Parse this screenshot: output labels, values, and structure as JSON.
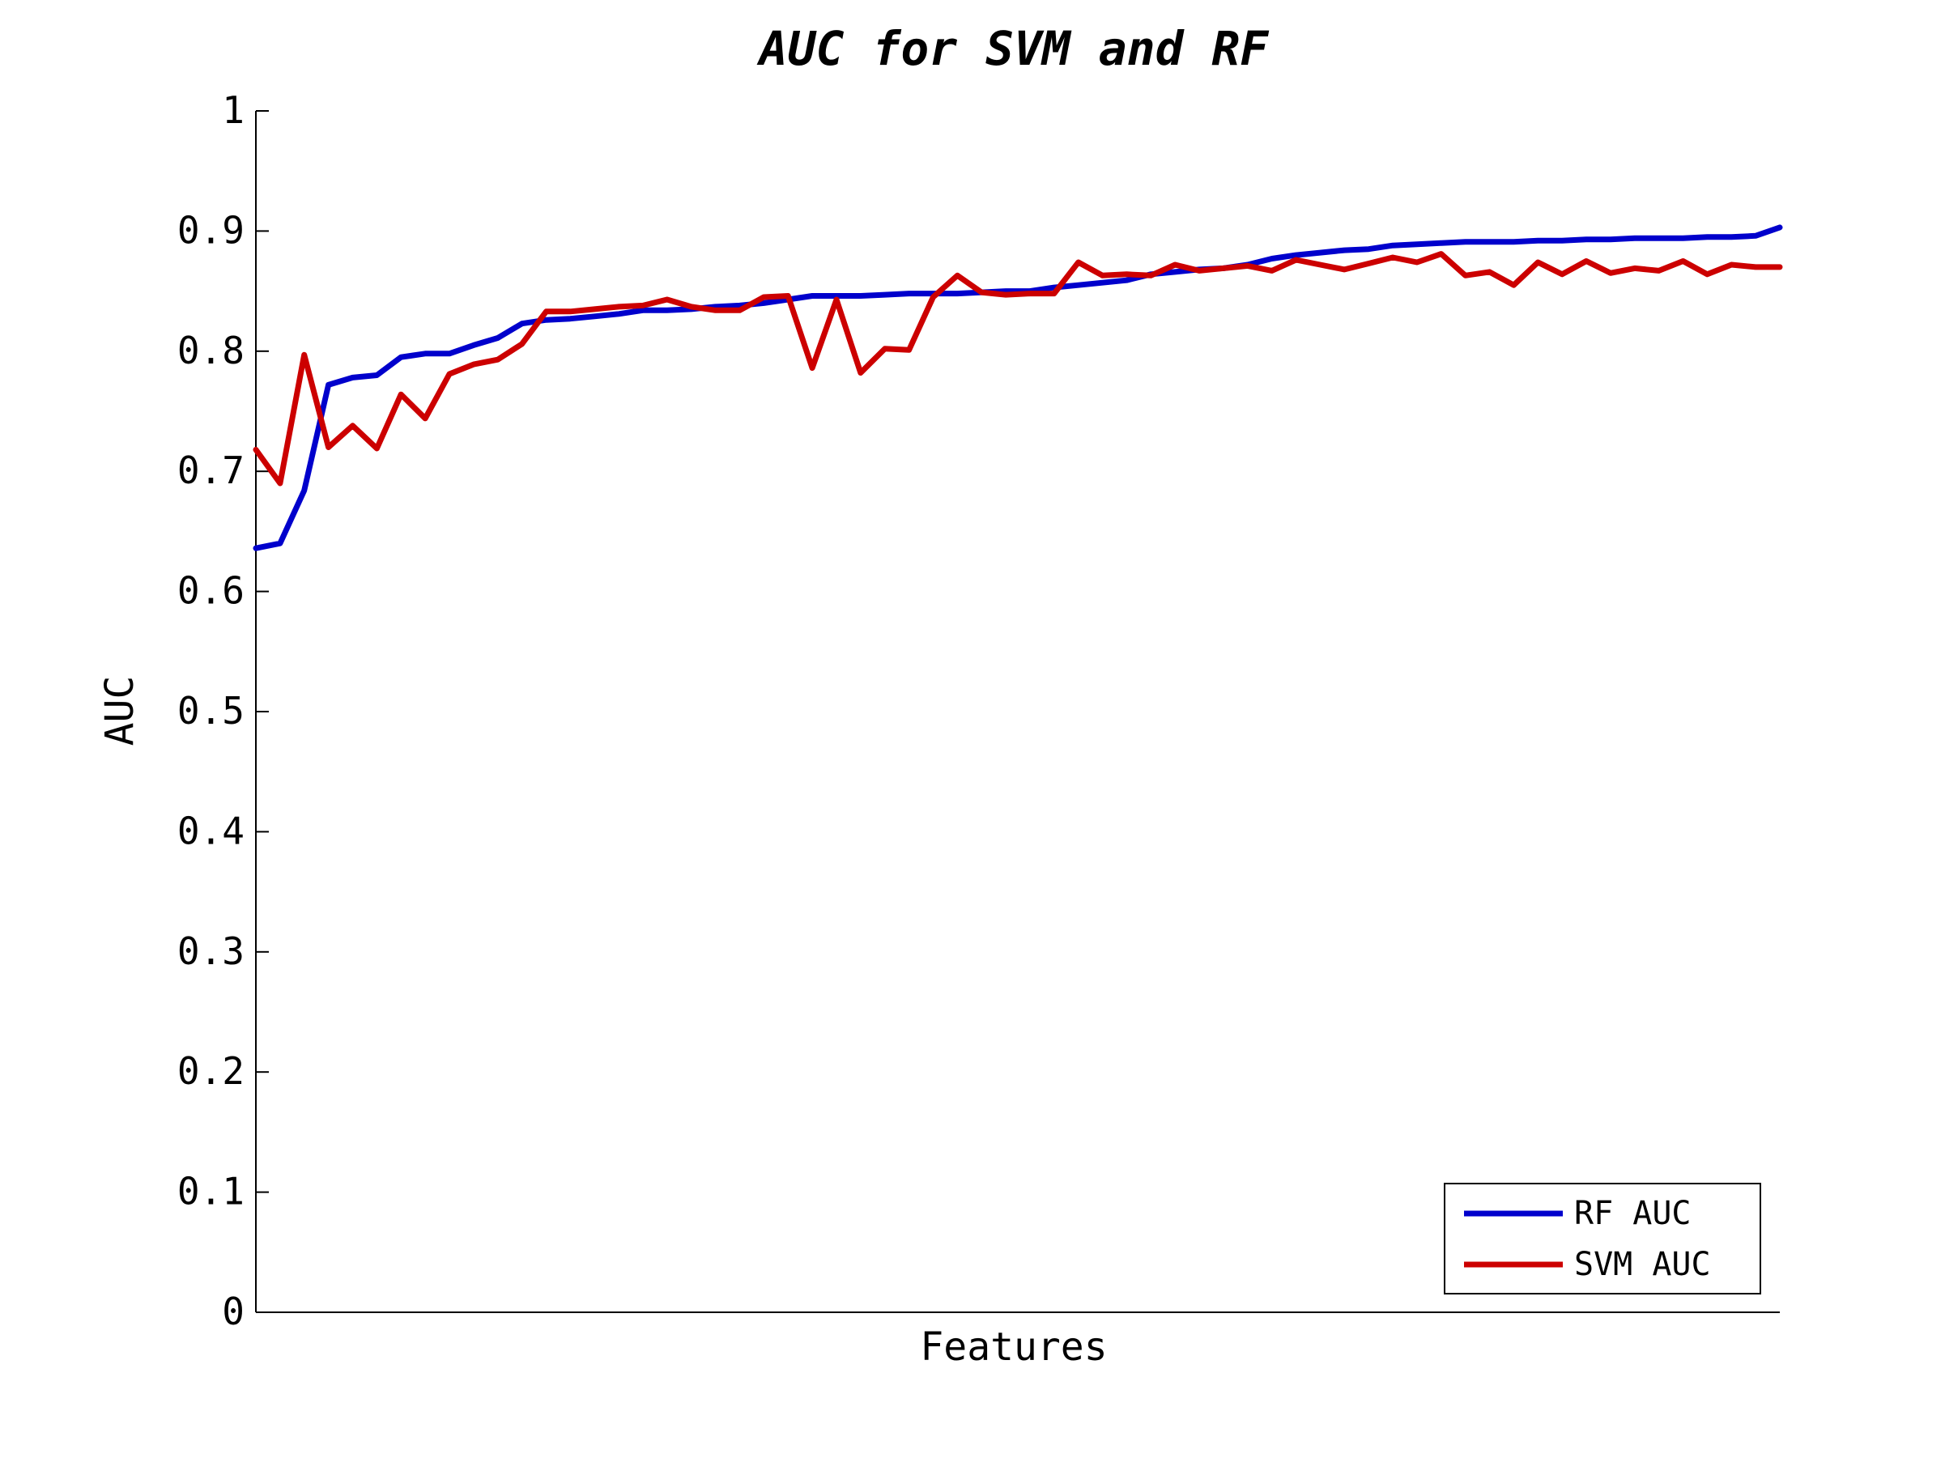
{
  "chart_data": {
    "type": "line",
    "title": "AUC for SVM and RF",
    "xlabel": "Features",
    "ylabel": "AUC",
    "ylim": [
      0,
      1
    ],
    "yticks": [
      0,
      0.1,
      0.2,
      0.3,
      0.4,
      0.5,
      0.6,
      0.7,
      0.8,
      0.9,
      1
    ],
    "ytick_labels": [
      "0",
      "0.1",
      "0.2",
      "0.3",
      "0.4",
      "0.5",
      "0.6",
      "0.7",
      "0.8",
      "0.9",
      "1"
    ],
    "xlim": [
      1,
      64
    ],
    "grid": false,
    "legend_position": "bottom-right",
    "x": [
      1,
      2,
      3,
      4,
      5,
      6,
      7,
      8,
      9,
      10,
      11,
      12,
      13,
      14,
      15,
      16,
      17,
      18,
      19,
      20,
      21,
      22,
      23,
      24,
      25,
      26,
      27,
      28,
      29,
      30,
      31,
      32,
      33,
      34,
      35,
      36,
      37,
      38,
      39,
      40,
      41,
      42,
      43,
      44,
      45,
      46,
      47,
      48,
      49,
      50,
      51,
      52,
      53,
      54,
      55,
      56,
      57,
      58,
      59,
      60,
      61,
      62,
      63,
      64
    ],
    "series": [
      {
        "name": "RF AUC",
        "color": "#0000cc",
        "values": [
          0.636,
          0.64,
          0.684,
          0.772,
          0.778,
          0.78,
          0.795,
          0.798,
          0.798,
          0.805,
          0.811,
          0.823,
          0.826,
          0.827,
          0.829,
          0.831,
          0.834,
          0.834,
          0.835,
          0.837,
          0.838,
          0.84,
          0.843,
          0.846,
          0.846,
          0.846,
          0.847,
          0.848,
          0.848,
          0.848,
          0.849,
          0.85,
          0.85,
          0.853,
          0.855,
          0.857,
          0.859,
          0.864,
          0.866,
          0.868,
          0.869,
          0.872,
          0.877,
          0.88,
          0.882,
          0.884,
          0.885,
          0.888,
          0.889,
          0.89,
          0.891,
          0.891,
          0.891,
          0.892,
          0.892,
          0.893,
          0.893,
          0.894,
          0.894,
          0.894,
          0.895,
          0.895,
          0.896,
          0.903
        ]
      },
      {
        "name": "SVM AUC",
        "color": "#cc0000",
        "values": [
          0.718,
          0.69,
          0.797,
          0.72,
          0.738,
          0.719,
          0.764,
          0.744,
          0.781,
          0.789,
          0.793,
          0.806,
          0.833,
          0.833,
          0.835,
          0.837,
          0.838,
          0.843,
          0.837,
          0.834,
          0.834,
          0.845,
          0.846,
          0.786,
          0.843,
          0.782,
          0.802,
          0.801,
          0.845,
          0.863,
          0.849,
          0.847,
          0.848,
          0.848,
          0.874,
          0.863,
          0.864,
          0.863,
          0.872,
          0.867,
          0.869,
          0.871,
          0.867,
          0.876,
          0.872,
          0.868,
          0.873,
          0.878,
          0.874,
          0.881,
          0.863,
          0.866,
          0.855,
          0.874,
          0.864,
          0.875,
          0.865,
          0.869,
          0.867,
          0.875,
          0.864,
          0.872,
          0.87,
          0.87
        ]
      }
    ]
  }
}
